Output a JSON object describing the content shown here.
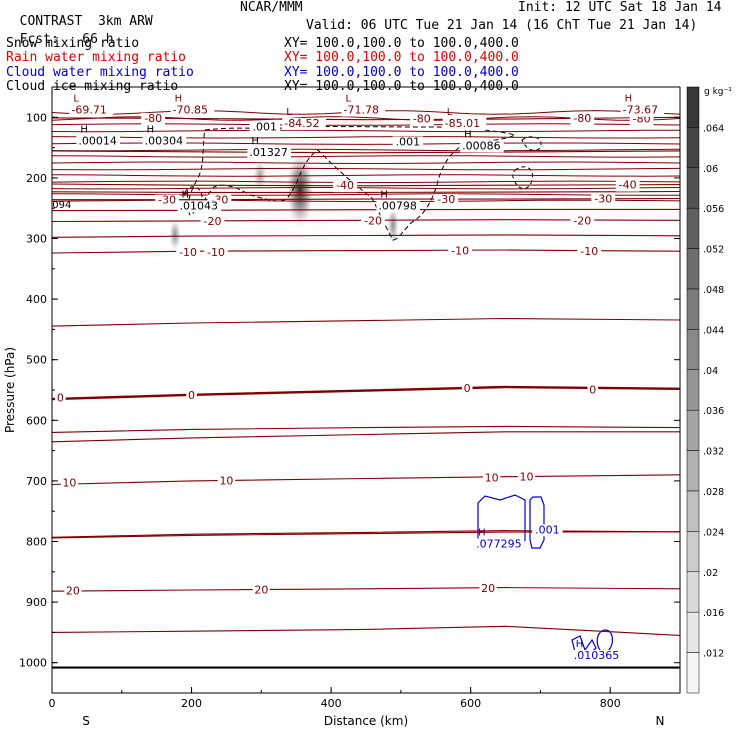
{
  "header": {
    "project": "CONTRAST",
    "model": "3km ARW",
    "org": "NCAR/MMM",
    "init": "Init: 12 UTC Sat 18 Jan 14",
    "fcst_label": "Fcst:",
    "fcst_value": "66 h",
    "valid": "Valid: 06 UTC Tue 21 Jan 14 (16 ChT Tue 21 Jan 14)"
  },
  "legend": [
    {
      "name": "Snow mixing ratio",
      "xy": "",
      "color": "#000000"
    },
    {
      "name": "Rain water mixing ratio",
      "xy": "XY= 100.0,100.0 to 100.0,400.0",
      "color": "#e00000"
    },
    {
      "name": "Cloud water mixing ratio",
      "xy": "XY= 100.0,100.0 to 100.0,400.0",
      "color": "#0000cc"
    },
    {
      "name": "Cloud ice mixing ratio",
      "xy": "XY= 100.0,100.0 to 100.0,400.0",
      "color": "#000000"
    }
  ],
  "snow_xy": "XY= 100.0,100.0 to 100.0,400.0",
  "colorbar": {
    "unit": "g kg⁻¹",
    "labels": [
      ".064",
      ".06",
      ".056",
      ".052",
      ".048",
      ".044",
      ".04",
      ".036",
      ".032",
      ".028",
      ".024",
      ".02",
      ".016",
      ".012"
    ]
  },
  "chart_data": {
    "type": "cross-section",
    "xlabel": "Distance (km)",
    "ylabel": "Pressure (hPa)",
    "x_ticks": [
      "0",
      "200",
      "400",
      "600",
      "800"
    ],
    "x_tick_values": [
      0,
      200,
      400,
      600,
      800
    ],
    "xlim": [
      0,
      900
    ],
    "y_ticks": [
      "100",
      "200",
      "300",
      "400",
      "500",
      "600",
      "700",
      "800",
      "900",
      "1000"
    ],
    "y_tick_values": [
      100,
      200,
      300,
      400,
      500,
      600,
      700,
      800,
      900,
      1000
    ],
    "ylim": [
      1050,
      50
    ],
    "ends": [
      "S",
      "N"
    ],
    "temperature_color": "#800000",
    "temperature_isotherms": [
      {
        "label": "20",
        "p": [
          882,
          880,
          878,
          876,
          878
        ]
      },
      {
        "label": "10",
        "p": [
          706,
          700,
          696,
          693,
          690
        ]
      },
      {
        "label": "0",
        "p": [
          565,
          558,
          551,
          545,
          548
        ]
      },
      {
        "label": "-10",
        "p": [
          324,
          321,
          320,
          319,
          321
        ]
      },
      {
        "label": "-20",
        "p": [
          272,
          271,
          270,
          269,
          270
        ]
      },
      {
        "label": "-30",
        "p": [
          236,
          236,
          235,
          235,
          234
        ]
      },
      {
        "label": "-40",
        "p": [
          210,
          212,
          213,
          212,
          211
        ]
      },
      {
        "label": "-80",
        "p": [
          101,
          102,
          104,
          103,
          100
        ]
      }
    ],
    "isotherm_x": [
      0,
      200,
      450,
      650,
      900
    ],
    "temperature_labels": [
      {
        "text": "20",
        "x": 30,
        "p": 881
      },
      {
        "text": "20",
        "x": 300,
        "p": 879
      },
      {
        "text": "20",
        "x": 625,
        "p": 877
      },
      {
        "text": "10",
        "x": 25,
        "p": 703
      },
      {
        "text": "10",
        "x": 250,
        "p": 699
      },
      {
        "text": "10",
        "x": 630,
        "p": 694
      },
      {
        "text": "10",
        "x": 680,
        "p": 693
      },
      {
        "text": "0",
        "x": 12,
        "p": 562
      },
      {
        "text": "0",
        "x": 200,
        "p": 558
      },
      {
        "text": "0",
        "x": 595,
        "p": 547
      },
      {
        "text": "0",
        "x": 775,
        "p": 549
      },
      {
        "text": "-10",
        "x": 195,
        "p": 322
      },
      {
        "text": "-10",
        "x": 235,
        "p": 322
      },
      {
        "text": "-10",
        "x": 585,
        "p": 320
      },
      {
        "text": "-10",
        "x": 770,
        "p": 321
      },
      {
        "text": "-20",
        "x": 230,
        "p": 271
      },
      {
        "text": "-20",
        "x": 460,
        "p": 270
      },
      {
        "text": "-20",
        "x": 760,
        "p": 270
      },
      {
        "text": "-30",
        "x": 165,
        "p": 236
      },
      {
        "text": "-30",
        "x": 240,
        "p": 236
      },
      {
        "text": "-30",
        "x": 565,
        "p": 235
      },
      {
        "text": "-30",
        "x": 790,
        "p": 234
      },
      {
        "text": "-40",
        "x": 420,
        "p": 212
      },
      {
        "text": "-40",
        "x": 825,
        "p": 211
      },
      {
        "text": "-80",
        "x": 145,
        "p": 101
      },
      {
        "text": "-80",
        "x": 530,
        "p": 102
      },
      {
        "text": "-80",
        "x": 760,
        "p": 101
      },
      {
        "text": "-80",
        "x": 845,
        "p": 102
      }
    ],
    "extrema_labels": [
      {
        "mark": "L",
        "value": "-69.71",
        "x": 45,
        "p": 84,
        "color": "#800000"
      },
      {
        "mark": "H",
        "value": "-70.85",
        "x": 190,
        "p": 84,
        "color": "#800000"
      },
      {
        "mark": "L",
        "value": "-84.52",
        "x": 350,
        "p": 106,
        "color": "#800000"
      },
      {
        "mark": "L",
        "value": "-71.78",
        "x": 435,
        "p": 84,
        "color": "#800000"
      },
      {
        "mark": "L",
        "value": "-85.01",
        "x": 580,
        "p": 106,
        "color": "#800000"
      },
      {
        "mark": "H",
        "value": "-73.67",
        "x": 835,
        "p": 84,
        "color": "#800000"
      },
      {
        "mark": "H",
        "value": ".00014",
        "x": 55,
        "p": 135,
        "color": "#000000"
      },
      {
        "mark": "H",
        "value": ".00304",
        "x": 150,
        "p": 135,
        "color": "#000000"
      },
      {
        "mark": "H",
        "value": ".01327",
        "x": 300,
        "p": 154,
        "color": "#000000"
      },
      {
        "mark": "H",
        "value": ".00086",
        "x": 605,
        "p": 143,
        "color": "#000000"
      },
      {
        "mark": "H",
        "value": ".01043",
        "x": 200,
        "p": 242,
        "color": "#000000"
      },
      {
        "mark": "H",
        "value": ".00798",
        "x": 485,
        "p": 242,
        "color": "#000000"
      },
      {
        "mark": "H",
        "value": ".077295",
        "x": 625,
        "p": 800,
        "color": "#0000cc"
      },
      {
        "mark": "H",
        "value": ".010365",
        "x": 765,
        "p": 984,
        "color": "#0000cc"
      }
    ],
    "contour_labels": [
      {
        "text": ".001",
        "x": 305,
        "p": 115,
        "color": "#000000"
      },
      {
        "text": ".001",
        "x": 510,
        "p": 140,
        "color": "#000000"
      },
      {
        "text": ".001",
        "x": 710,
        "p": 780,
        "color": "#0000cc"
      }
    ],
    "edge_label": {
      "text": "094",
      "x": 14,
      "p": 243
    },
    "surface_p": 1008
  }
}
